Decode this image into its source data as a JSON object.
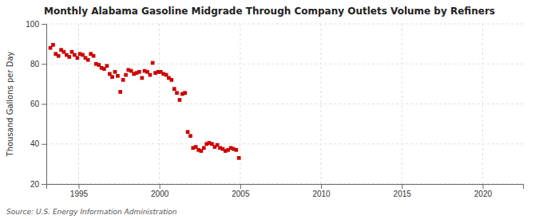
{
  "chart_data": {
    "type": "scatter",
    "title": "Monthly Alabama Gasoline Midgrade Through Company Outlets Volume by Refiners",
    "y_label": "Thousand Gallons per Day",
    "source": "Source: U.S. Energy Information Administration",
    "color": "#cc0000",
    "marker": "square",
    "grid": true,
    "xlim": [
      1993.0,
      2022.5
    ],
    "xticks": [
      1995,
      2000,
      2005,
      2010,
      2015,
      2020
    ],
    "ylim": [
      20,
      100
    ],
    "yticks": [
      20,
      40,
      60,
      80,
      100
    ],
    "x": [
      1993.25,
      1993.42,
      1993.58,
      1993.75,
      1993.92,
      1994.08,
      1994.25,
      1994.42,
      1994.58,
      1994.75,
      1994.92,
      1995.08,
      1995.25,
      1995.42,
      1995.58,
      1995.75,
      1995.92,
      1996.08,
      1996.25,
      1996.42,
      1996.58,
      1996.75,
      1996.92,
      1997.08,
      1997.25,
      1997.42,
      1997.58,
      1997.75,
      1997.92,
      1998.08,
      1998.25,
      1998.42,
      1998.58,
      1998.75,
      1998.92,
      1999.08,
      1999.25,
      1999.42,
      1999.58,
      1999.75,
      1999.92,
      2000.08,
      2000.25,
      2000.42,
      2000.58,
      2000.75,
      2000.92,
      2001.08,
      2001.25,
      2001.42,
      2001.58,
      2001.75,
      2001.92,
      2002.08,
      2002.25,
      2002.42,
      2002.58,
      2002.75,
      2002.92,
      2003.08,
      2003.25,
      2003.42,
      2003.58,
      2003.75,
      2003.92,
      2004.08,
      2004.25,
      2004.42,
      2004.58,
      2004.75,
      2004.92
    ],
    "values": [
      88.0,
      89.5,
      85.0,
      84.0,
      87.0,
      86.0,
      84.5,
      83.5,
      86.0,
      84.5,
      83.0,
      85.0,
      84.5,
      83.0,
      82.0,
      85.0,
      84.0,
      80.0,
      79.5,
      78.0,
      77.5,
      79.0,
      75.0,
      73.5,
      76.0,
      74.0,
      66.0,
      72.0,
      74.5,
      77.0,
      76.5,
      75.0,
      75.5,
      76.0,
      73.0,
      76.5,
      76.0,
      74.5,
      80.5,
      75.5,
      76.0,
      76.0,
      75.0,
      74.5,
      73.0,
      72.0,
      67.5,
      65.5,
      62.0,
      65.0,
      65.5,
      46.0,
      44.0,
      38.0,
      38.5,
      37.0,
      36.5,
      38.0,
      40.0,
      40.5,
      40.0,
      38.5,
      39.5,
      38.0,
      37.5,
      36.5,
      37.0,
      38.0,
      37.5,
      37.0,
      33.0
    ]
  }
}
